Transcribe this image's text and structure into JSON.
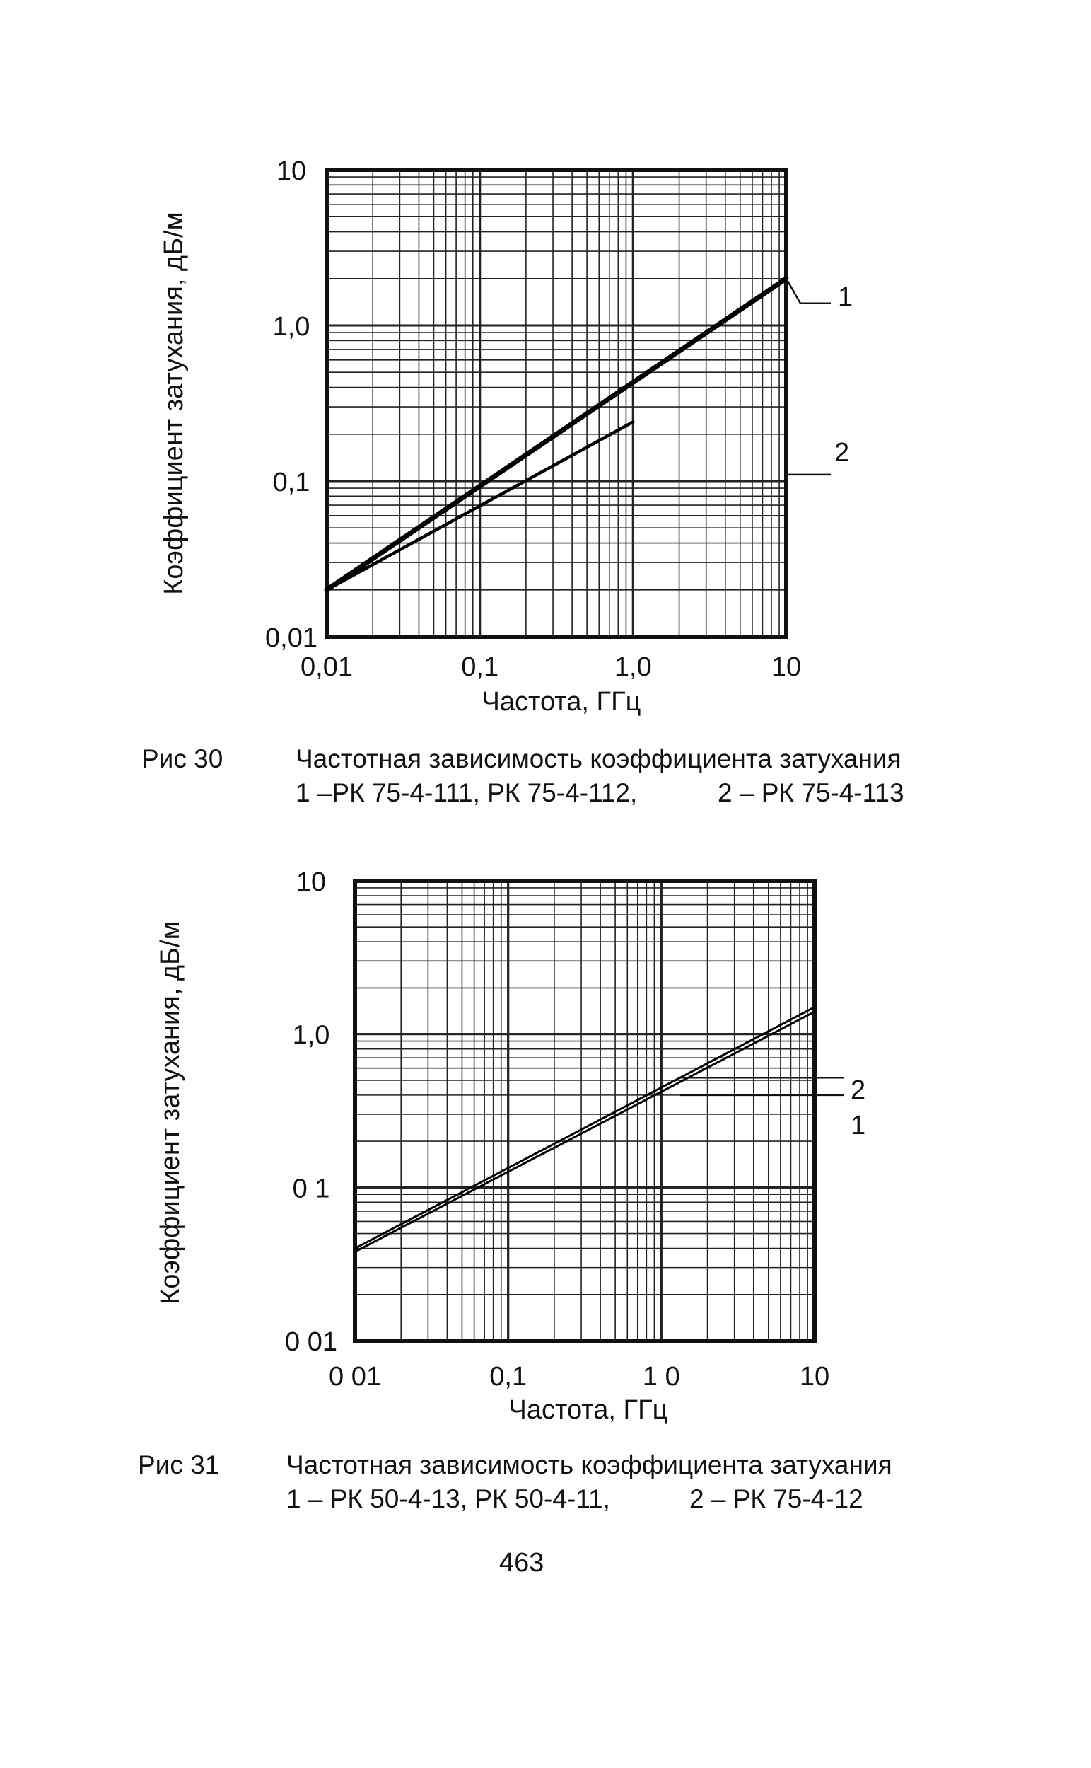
{
  "page_number": "463",
  "figures": [
    {
      "caption_label": "Рис 30",
      "caption_title": "Частотная зависимость коэффициента затухания",
      "caption_legend_1": "1 –РК 75-4-111, РК 75-4-112,",
      "caption_legend_2": "2 – РК 75-4-113"
    },
    {
      "caption_label": "Рис 31",
      "caption_title": "Частотная зависимость коэффициента затухания",
      "caption_legend_1": "1 – РК 50-4-13, РК 50-4-11,",
      "caption_legend_2": "2 – РК 75-4-12"
    }
  ],
  "chart_data": [
    {
      "type": "line",
      "xlabel": "Частота, ГГц",
      "ylabel": "Коэффициент затухания, дБ/м",
      "x_scale": "log",
      "y_scale": "log",
      "xlim": [
        0.01,
        10
      ],
      "ylim": [
        0.01,
        10
      ],
      "grid": true,
      "x_tick_labels": [
        "0,01",
        "0,1",
        "1,0",
        "10"
      ],
      "x_tick_values": [
        0.01,
        0.1,
        1,
        10
      ],
      "y_tick_labels": [
        "0,01",
        "0,1",
        "1,0",
        "10"
      ],
      "y_tick_values": [
        0.01,
        0.1,
        1,
        10
      ],
      "series": [
        {
          "name": "1",
          "x": [
            0.01,
            10
          ],
          "y": [
            0.02,
            2.0
          ]
        },
        {
          "name": "2",
          "x": [
            0.01,
            1.0
          ],
          "y": [
            0.02,
            0.24
          ]
        }
      ]
    },
    {
      "type": "line",
      "xlabel": "Частота, ГГц",
      "ylabel": "Коэффициент затухания, дБ/м",
      "x_scale": "log",
      "y_scale": "log",
      "xlim": [
        0.01,
        10
      ],
      "ylim": [
        0.01,
        10
      ],
      "grid": true,
      "x_tick_labels": [
        "0 01",
        "0,1",
        "1 0",
        "10"
      ],
      "x_tick_values": [
        0.01,
        0.1,
        1,
        10
      ],
      "y_tick_labels": [
        "0 01",
        "0 1",
        "1,0",
        "10"
      ],
      "y_tick_values": [
        0.01,
        0.1,
        1,
        10
      ],
      "series": [
        {
          "name": "1",
          "x": [
            0.01,
            10
          ],
          "y": [
            0.038,
            1.4
          ]
        },
        {
          "name": "2",
          "x": [
            0.01,
            10
          ],
          "y": [
            0.04,
            1.5
          ]
        }
      ]
    }
  ]
}
